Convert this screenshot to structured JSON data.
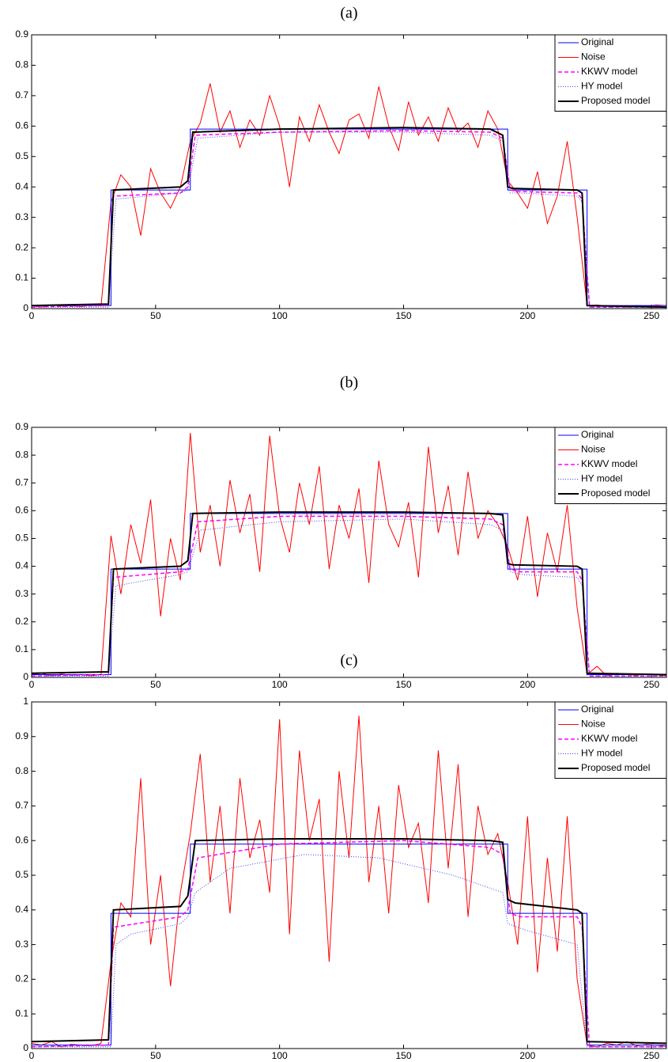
{
  "chart_data": [
    {
      "type": "line",
      "title": "(a)",
      "xlim": [
        0,
        256
      ],
      "xticks": [
        0,
        50,
        100,
        150,
        200,
        250
      ],
      "ylim": [
        0,
        0.9
      ],
      "yticks": [
        0,
        0.1,
        0.2,
        0.3,
        0.4,
        0.5,
        0.6,
        0.7,
        0.8,
        0.9
      ],
      "legend": "upper right",
      "series": [
        {
          "name": "Original",
          "color": "#0000ff",
          "linestyle": "solid",
          "x": [
            0,
            32,
            32,
            64,
            64,
            192,
            192,
            224,
            224,
            256
          ],
          "values": [
            0.01,
            0.01,
            0.39,
            0.39,
            0.59,
            0.59,
            0.39,
            0.39,
            0.01,
            0.01
          ]
        },
        {
          "name": "Noise",
          "color": "#ff0000",
          "linestyle": "solid",
          "x": [
            0,
            4,
            8,
            12,
            16,
            20,
            24,
            28,
            32,
            36,
            40,
            44,
            48,
            52,
            56,
            60,
            64,
            68,
            72,
            76,
            80,
            84,
            88,
            92,
            96,
            100,
            104,
            108,
            112,
            116,
            120,
            124,
            128,
            132,
            136,
            140,
            144,
            148,
            152,
            156,
            160,
            164,
            168,
            172,
            176,
            180,
            184,
            188,
            192,
            196,
            200,
            204,
            208,
            212,
            216,
            220,
            224,
            228,
            232,
            236,
            240,
            244,
            248,
            252,
            256
          ],
          "values": [
            0.01,
            0.005,
            0.012,
            0.008,
            0.01,
            0.006,
            0.015,
            0.01,
            0.35,
            0.44,
            0.4,
            0.24,
            0.46,
            0.38,
            0.33,
            0.4,
            0.55,
            0.61,
            0.74,
            0.58,
            0.65,
            0.53,
            0.62,
            0.57,
            0.7,
            0.6,
            0.4,
            0.63,
            0.55,
            0.67,
            0.58,
            0.51,
            0.62,
            0.64,
            0.56,
            0.73,
            0.6,
            0.52,
            0.68,
            0.57,
            0.63,
            0.55,
            0.66,
            0.58,
            0.61,
            0.53,
            0.65,
            0.59,
            0.42,
            0.38,
            0.33,
            0.45,
            0.28,
            0.37,
            0.55,
            0.3,
            0.01,
            0.012,
            0.008,
            0.01,
            0.005,
            0.01,
            0.008,
            0.012,
            0.01
          ]
        },
        {
          "name": "KKWV model",
          "color": "#ff00ff",
          "linestyle": "dashed",
          "x": [
            0,
            31,
            33,
            60,
            63,
            66,
            100,
            150,
            185,
            190,
            193,
            196,
            220,
            222,
            225,
            256
          ],
          "values": [
            0.005,
            0.01,
            0.37,
            0.38,
            0.4,
            0.57,
            0.58,
            0.585,
            0.58,
            0.56,
            0.39,
            0.385,
            0.38,
            0.36,
            0.005,
            0.005
          ]
        },
        {
          "name": "HY model",
          "color": "#4040ff",
          "linestyle": "dotted",
          "x": [
            0,
            31,
            34,
            60,
            63,
            67,
            100,
            150,
            185,
            190,
            193,
            197,
            220,
            222,
            225,
            256
          ],
          "values": [
            0.005,
            0.005,
            0.36,
            0.38,
            0.39,
            0.56,
            0.58,
            0.58,
            0.57,
            0.55,
            0.38,
            0.38,
            0.37,
            0.35,
            0.005,
            0.005
          ]
        },
        {
          "name": "Proposed model",
          "color": "#000000",
          "linestyle": "thick",
          "x": [
            0,
            31,
            33,
            60,
            63,
            65,
            100,
            150,
            185,
            190,
            192,
            194,
            220,
            222,
            224,
            256
          ],
          "values": [
            0.01,
            0.015,
            0.39,
            0.4,
            0.42,
            0.58,
            0.59,
            0.595,
            0.59,
            0.57,
            0.4,
            0.395,
            0.39,
            0.38,
            0.01,
            0.005
          ]
        }
      ]
    },
    {
      "type": "line",
      "title": "(b)",
      "xlim": [
        0,
        256
      ],
      "xticks": [
        0,
        50,
        100,
        150,
        200,
        250
      ],
      "ylim": [
        0,
        0.9
      ],
      "yticks": [
        0,
        0.1,
        0.2,
        0.3,
        0.4,
        0.5,
        0.6,
        0.7,
        0.8,
        0.9
      ],
      "legend": "upper right",
      "series": [
        {
          "name": "Original",
          "color": "#0000ff",
          "linestyle": "solid",
          "x": [
            0,
            32,
            32,
            64,
            64,
            192,
            192,
            224,
            224,
            256
          ],
          "values": [
            0.01,
            0.01,
            0.39,
            0.39,
            0.59,
            0.59,
            0.39,
            0.39,
            0.01,
            0.01
          ]
        },
        {
          "name": "Noise",
          "color": "#ff0000",
          "linestyle": "solid",
          "x": [
            0,
            4,
            8,
            12,
            16,
            20,
            24,
            28,
            32,
            36,
            40,
            44,
            48,
            52,
            56,
            60,
            64,
            68,
            72,
            76,
            80,
            84,
            88,
            92,
            96,
            100,
            104,
            108,
            112,
            116,
            120,
            124,
            128,
            132,
            136,
            140,
            144,
            148,
            152,
            156,
            160,
            164,
            168,
            172,
            176,
            180,
            184,
            188,
            192,
            196,
            200,
            204,
            208,
            212,
            216,
            220,
            224,
            228,
            232,
            236,
            240,
            244,
            248,
            252,
            256
          ],
          "values": [
            0.01,
            0.015,
            0.005,
            0.012,
            0.008,
            0.01,
            0.006,
            0.01,
            0.51,
            0.3,
            0.55,
            0.41,
            0.64,
            0.22,
            0.5,
            0.35,
            0.88,
            0.45,
            0.62,
            0.4,
            0.71,
            0.52,
            0.66,
            0.38,
            0.87,
            0.58,
            0.45,
            0.7,
            0.55,
            0.76,
            0.39,
            0.62,
            0.5,
            0.68,
            0.34,
            0.78,
            0.55,
            0.47,
            0.63,
            0.36,
            0.83,
            0.52,
            0.69,
            0.44,
            0.74,
            0.5,
            0.6,
            0.55,
            0.47,
            0.35,
            0.58,
            0.29,
            0.52,
            0.38,
            0.62,
            0.25,
            0.01,
            0.04,
            0.005,
            0.015,
            0.01,
            0.008,
            0.012,
            0.01,
            0.006
          ]
        },
        {
          "name": "KKWV model",
          "color": "#ff00ff",
          "linestyle": "dashed",
          "x": [
            0,
            31,
            33,
            60,
            63,
            67,
            100,
            150,
            185,
            190,
            193,
            197,
            220,
            222,
            225,
            256
          ],
          "values": [
            0.005,
            0.01,
            0.36,
            0.38,
            0.39,
            0.56,
            0.58,
            0.58,
            0.57,
            0.55,
            0.39,
            0.38,
            0.38,
            0.35,
            0.005,
            0.005
          ]
        },
        {
          "name": "HY model",
          "color": "#4040ff",
          "linestyle": "dotted",
          "x": [
            0,
            31,
            34,
            60,
            63,
            68,
            100,
            150,
            185,
            190,
            193,
            198,
            220,
            222,
            225,
            256
          ],
          "values": [
            0.005,
            0.005,
            0.33,
            0.37,
            0.38,
            0.53,
            0.56,
            0.57,
            0.55,
            0.53,
            0.38,
            0.37,
            0.36,
            0.33,
            0.005,
            0.005
          ]
        },
        {
          "name": "Proposed model",
          "color": "#000000",
          "linestyle": "thick",
          "x": [
            0,
            31,
            33,
            60,
            63,
            65,
            100,
            150,
            185,
            190,
            192,
            194,
            220,
            222,
            224,
            256
          ],
          "values": [
            0.015,
            0.02,
            0.39,
            0.4,
            0.42,
            0.59,
            0.595,
            0.595,
            0.59,
            0.585,
            0.41,
            0.405,
            0.4,
            0.39,
            0.015,
            0.01
          ]
        }
      ]
    },
    {
      "type": "line",
      "title": "(c)",
      "xlim": [
        0,
        256
      ],
      "xticks": [
        0,
        50,
        100,
        150,
        200,
        250
      ],
      "ylim": [
        0,
        1
      ],
      "yticks": [
        0,
        0.1,
        0.2,
        0.3,
        0.4,
        0.5,
        0.6,
        0.7,
        0.8,
        0.9,
        1
      ],
      "legend": "upper right",
      "series": [
        {
          "name": "Original",
          "color": "#0000ff",
          "linestyle": "solid",
          "x": [
            0,
            32,
            32,
            64,
            64,
            192,
            192,
            224,
            224,
            256
          ],
          "values": [
            0.01,
            0.01,
            0.39,
            0.39,
            0.59,
            0.59,
            0.39,
            0.39,
            0.01,
            0.01
          ]
        },
        {
          "name": "Noise",
          "color": "#ff0000",
          "linestyle": "solid",
          "x": [
            0,
            4,
            8,
            12,
            16,
            20,
            24,
            28,
            32,
            36,
            40,
            44,
            48,
            52,
            56,
            60,
            64,
            68,
            72,
            76,
            80,
            84,
            88,
            92,
            96,
            100,
            104,
            108,
            112,
            116,
            120,
            124,
            128,
            132,
            136,
            140,
            144,
            148,
            152,
            156,
            160,
            164,
            168,
            172,
            176,
            180,
            184,
            188,
            192,
            196,
            200,
            204,
            208,
            212,
            216,
            220,
            224,
            228,
            232,
            236,
            240,
            244,
            248,
            252,
            256
          ],
          "values": [
            0.015,
            0.01,
            0.02,
            0.005,
            0.012,
            0.01,
            0.008,
            0.015,
            0.25,
            0.42,
            0.38,
            0.78,
            0.3,
            0.5,
            0.18,
            0.45,
            0.62,
            0.85,
            0.48,
            0.7,
            0.39,
            0.78,
            0.55,
            0.66,
            0.45,
            0.95,
            0.33,
            0.86,
            0.6,
            0.72,
            0.25,
            0.8,
            0.55,
            0.96,
            0.48,
            0.7,
            0.39,
            0.76,
            0.58,
            0.65,
            0.42,
            0.86,
            0.52,
            0.82,
            0.38,
            0.7,
            0.56,
            0.62,
            0.48,
            0.3,
            0.67,
            0.22,
            0.55,
            0.28,
            0.67,
            0.2,
            0.01,
            0.005,
            0.015,
            0.01,
            0.02,
            0.008,
            0.012,
            0.01,
            0.006
          ]
        },
        {
          "name": "KKWV model",
          "color": "#ff00ff",
          "linestyle": "dashed",
          "x": [
            0,
            31,
            33,
            60,
            63,
            67,
            100,
            150,
            185,
            190,
            193,
            197,
            220,
            222,
            225,
            256
          ],
          "values": [
            0.005,
            0.01,
            0.35,
            0.38,
            0.4,
            0.55,
            0.59,
            0.6,
            0.58,
            0.56,
            0.39,
            0.38,
            0.38,
            0.35,
            0.005,
            0.005
          ]
        },
        {
          "name": "HY model",
          "color": "#4040ff",
          "linestyle": "dotted",
          "x": [
            0,
            32,
            34,
            40,
            60,
            63,
            66,
            80,
            110,
            140,
            170,
            190,
            192,
            200,
            220,
            224,
            256
          ],
          "values": [
            0.005,
            0.005,
            0.3,
            0.33,
            0.36,
            0.38,
            0.45,
            0.52,
            0.56,
            0.55,
            0.5,
            0.45,
            0.36,
            0.34,
            0.3,
            0.005,
            0.005
          ]
        },
        {
          "name": "Proposed model",
          "color": "#000000",
          "linestyle": "thick",
          "x": [
            0,
            31,
            33,
            60,
            63,
            66,
            100,
            150,
            185,
            190,
            192,
            195,
            220,
            222,
            224,
            256
          ],
          "values": [
            0.02,
            0.025,
            0.4,
            0.41,
            0.44,
            0.6,
            0.605,
            0.605,
            0.6,
            0.595,
            0.43,
            0.42,
            0.4,
            0.39,
            0.02,
            0.015
          ]
        }
      ]
    }
  ]
}
